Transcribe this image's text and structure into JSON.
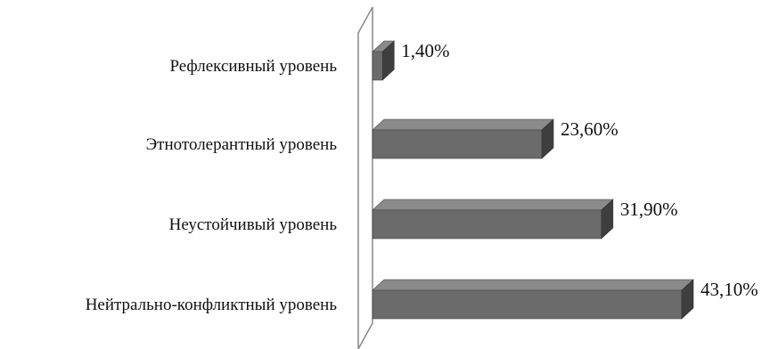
{
  "chart_data": {
    "type": "bar",
    "orientation": "horizontal",
    "style": "3d",
    "categories": [
      "Рефлексивный уровень",
      "Этнотолерантный уровень",
      "Неустойчивый уровень",
      "Нейтрально-конфликтный уровень"
    ],
    "values": [
      1.4,
      23.6,
      31.9,
      43.1
    ],
    "value_labels": [
      "1,40%",
      "23,60%",
      "31,90%",
      "43,10%"
    ],
    "xlim": [
      0,
      45
    ],
    "grid": false,
    "legend": "none",
    "colors": {
      "bar_front": "#6b6b6b",
      "bar_top": "#8a8a8a",
      "bar_side": "#3e3e3e",
      "wall": "#888888"
    }
  }
}
